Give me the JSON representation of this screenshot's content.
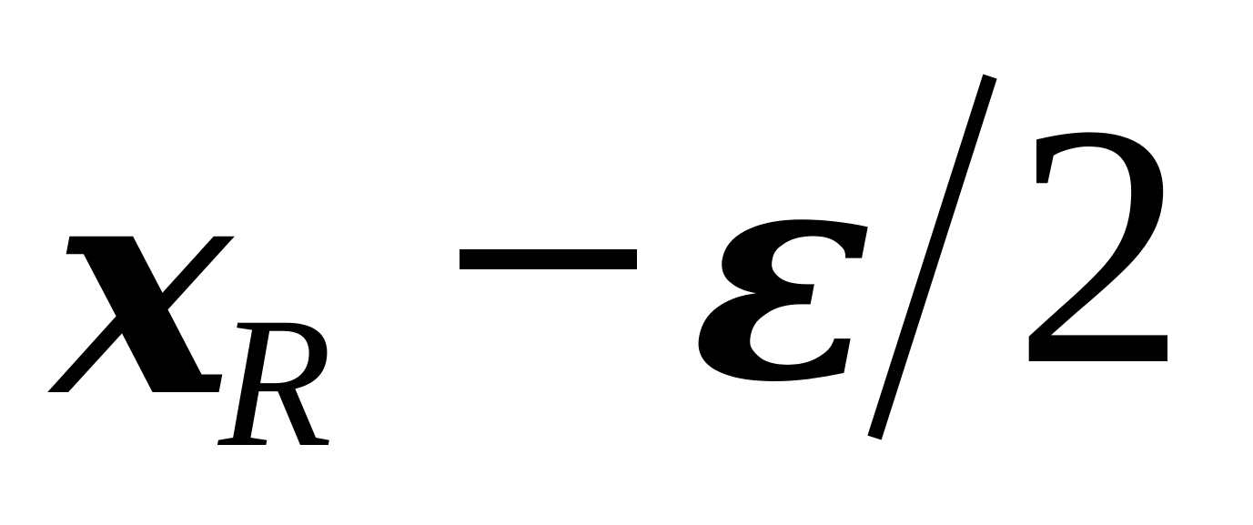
{
  "formula": {
    "variable": "x",
    "subscript": "R",
    "operator": "−",
    "symbol": "ε",
    "divider": "/",
    "denominator": "2"
  }
}
